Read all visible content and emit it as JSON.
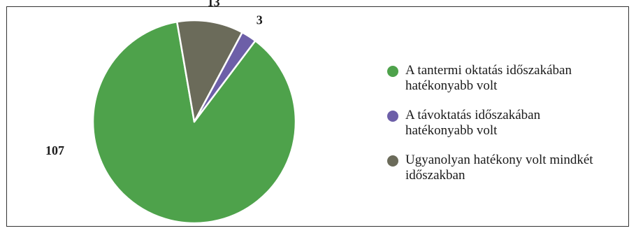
{
  "chart_data": {
    "type": "pie",
    "title": "",
    "slices": [
      {
        "label": "A tantermi oktatás időszakában hatékonyabb volt",
        "value": 107,
        "value_label": "107",
        "color": "#4ea24b"
      },
      {
        "label": "A távoktatás időszakában hatékonyabb volt",
        "value": 3,
        "value_label": "3",
        "color": "#6d5fa8"
      },
      {
        "label": "Ugyanolyan hatékony volt mindkét időszakban",
        "value": 13,
        "value_label": "13",
        "color": "#6b6b5a"
      }
    ],
    "legend_position": "right",
    "border": true
  }
}
